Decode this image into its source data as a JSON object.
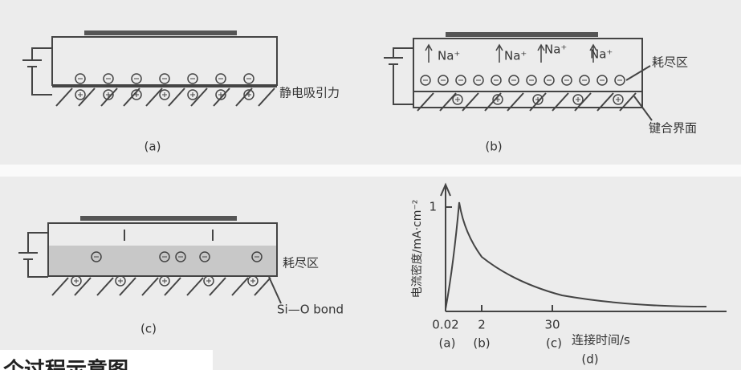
{
  "panels": {
    "a": {
      "label": "(a)",
      "annotation": "静电吸引力"
    },
    "b": {
      "label": "(b)",
      "ions": [
        "Na⁺",
        "Na⁺",
        "Na⁺",
        "Na⁺"
      ],
      "depletion": "耗尽区",
      "interface": "键合界面"
    },
    "c": {
      "label": "(c)",
      "depletion": "耗尽区",
      "bond": "Si—O bond"
    },
    "d": {
      "y_label": "电流密度/mA·cm⁻²",
      "y_tick": "1",
      "x_ticks": [
        "0.02",
        "2",
        "30"
      ],
      "stages": [
        "(a)",
        "(b)",
        "(c)"
      ],
      "x_label": "连接时间/s",
      "label": "(d)"
    }
  },
  "caption": "个过程示意图"
}
